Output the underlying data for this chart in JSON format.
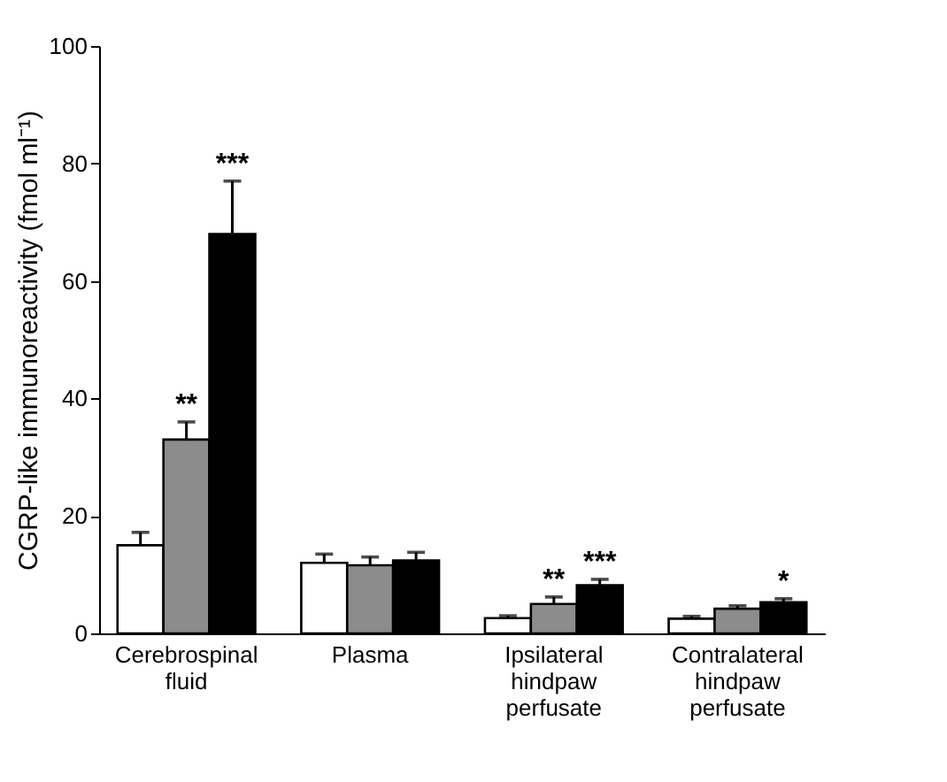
{
  "chart_data": {
    "type": "bar",
    "ylabel": "CGRP-like immunoreactivity (fmol ml⁻¹)",
    "categories": [
      "Cerebrospinal fluid",
      "Plasma",
      "Ipsilateral hindpaw perfusate",
      "Contralateral hindpaw perfusate"
    ],
    "series": [
      {
        "color": "#ffffff",
        "values": [
          15,
          12,
          2.6,
          2.5
        ],
        "errors": [
          2.2,
          1.5,
          0.4,
          0.4
        ]
      },
      {
        "color": "#8c8c8c",
        "values": [
          33,
          11.6,
          5,
          4.2
        ],
        "errors": [
          3,
          1.4,
          1.2,
          0.5
        ],
        "value_labels": [
          "**",
          null,
          "**",
          null
        ]
      },
      {
        "color": "#000000",
        "values": [
          68,
          12.4,
          8.2,
          5.3
        ],
        "errors": [
          9,
          1.4,
          1,
          0.6
        ],
        "value_labels": [
          "***",
          null,
          "***",
          "*"
        ]
      }
    ],
    "ylim": [
      0,
      100
    ],
    "yticks": [
      0,
      20,
      40,
      60,
      80,
      100
    ],
    "grid": false,
    "legend": false
  }
}
